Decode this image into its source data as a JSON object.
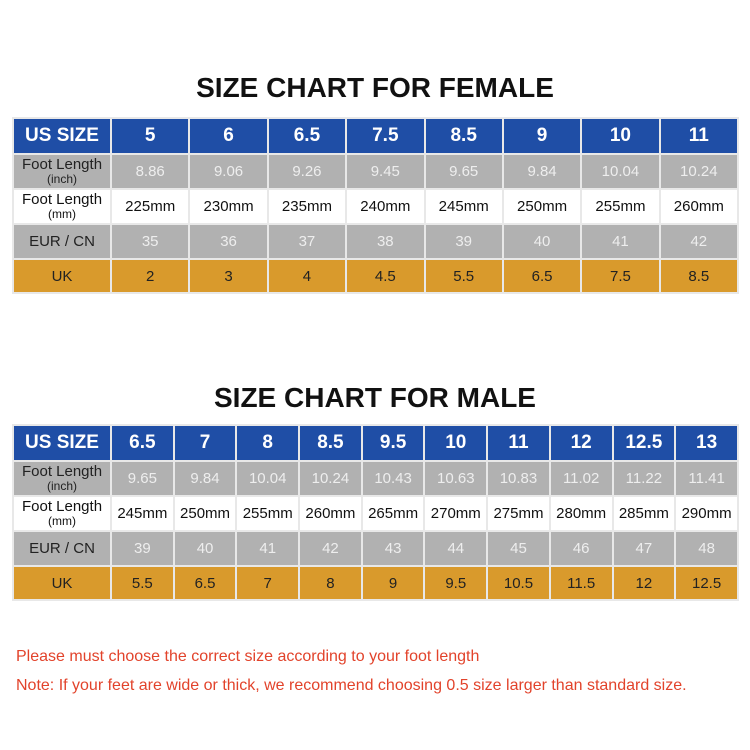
{
  "female": {
    "title": "SIZE CHART FOR FEMALE",
    "row_labels": {
      "us": "US SIZE",
      "inch_main": "Foot Length",
      "inch_unit": "(inch)",
      "mm_main": "Foot Length",
      "mm_unit": "(mm)",
      "eur": "EUR / CN",
      "uk": "UK"
    },
    "us": [
      "5",
      "6",
      "6.5",
      "7.5",
      "8.5",
      "9",
      "10",
      "11"
    ],
    "inch": [
      "8.86",
      "9.06",
      "9.26",
      "9.45",
      "9.65",
      "9.84",
      "10.04",
      "10.24"
    ],
    "mm": [
      "225mm",
      "230mm",
      "235mm",
      "240mm",
      "245mm",
      "250mm",
      "255mm",
      "260mm"
    ],
    "eur": [
      "35",
      "36",
      "37",
      "38",
      "39",
      "40",
      "41",
      "42"
    ],
    "uk": [
      "2",
      "3",
      "4",
      "4.5",
      "5.5",
      "6.5",
      "7.5",
      "8.5"
    ]
  },
  "male": {
    "title": "SIZE CHART FOR MALE",
    "row_labels": {
      "us": "US SIZE",
      "inch_main": "Foot Length",
      "inch_unit": "(inch)",
      "mm_main": "Foot Length",
      "mm_unit": "(mm)",
      "eur": "EUR / CN",
      "uk": "UK"
    },
    "us": [
      "6.5",
      "7",
      "8",
      "8.5",
      "9.5",
      "10",
      "11",
      "12",
      "12.5",
      "13"
    ],
    "inch": [
      "9.65",
      "9.84",
      "10.04",
      "10.24",
      "10.43",
      "10.63",
      "10.83",
      "11.02",
      "11.22",
      "11.41"
    ],
    "mm": [
      "245mm",
      "250mm",
      "255mm",
      "260mm",
      "265mm",
      "270mm",
      "275mm",
      "280mm",
      "285mm",
      "290mm"
    ],
    "eur": [
      "39",
      "40",
      "41",
      "42",
      "43",
      "44",
      "45",
      "46",
      "47",
      "48"
    ],
    "uk": [
      "5.5",
      "6.5",
      "7",
      "8",
      "9",
      "9.5",
      "10.5",
      "11.5",
      "12",
      "12.5"
    ]
  },
  "notes": [
    "Please must choose the correct size  according to your foot length",
    "Note: If your feet are wide or thick, we recommend choosing 0.5 size larger than standard size."
  ],
  "colors": {
    "header_blue": "#1f4ea6",
    "gray_row": "#b1b1b1",
    "uk_gold": "#d99a2c",
    "note_red": "#e2432b"
  }
}
